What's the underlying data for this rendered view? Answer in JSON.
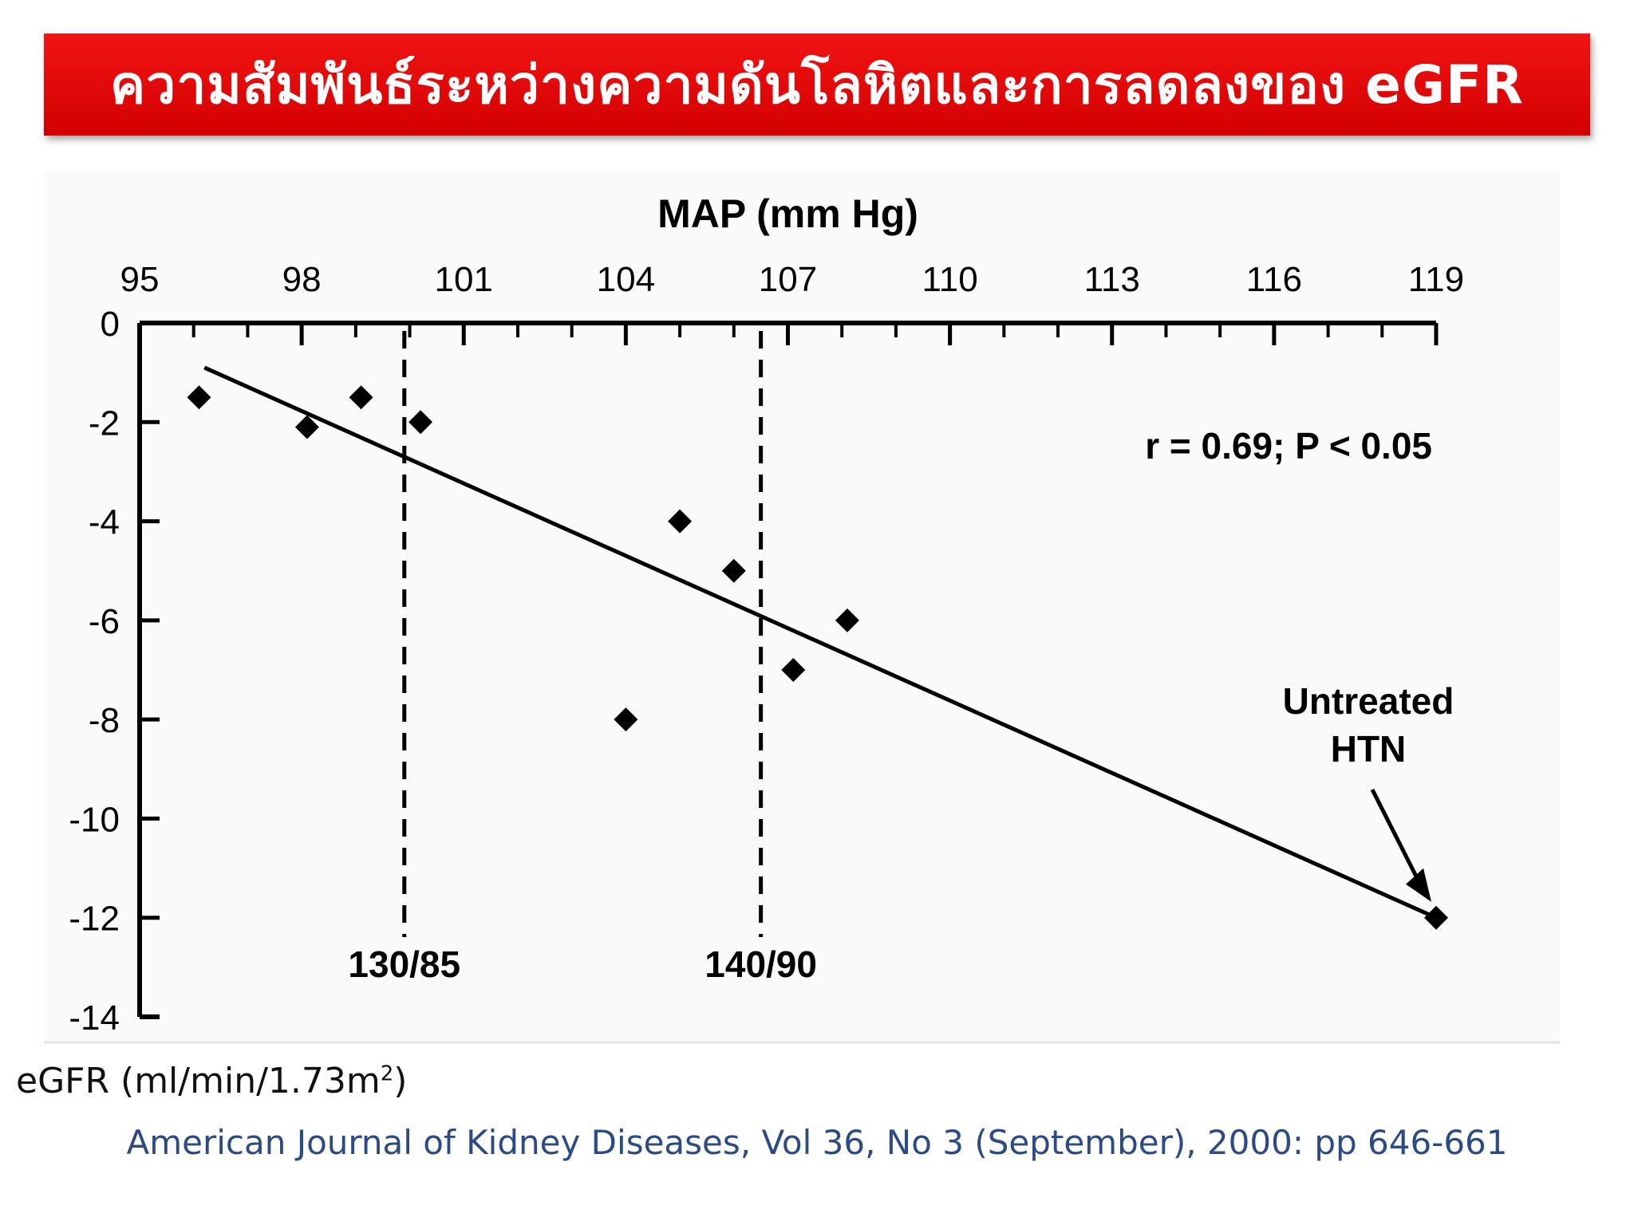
{
  "title": {
    "thai": "ความสัมพันธ์ระหว่างความดันโลหิตและการลดลงของ",
    "suffix": "eGFR"
  },
  "chart_data": {
    "type": "scatter",
    "xlabel": "MAP (mm Hg)",
    "xlim": [
      95,
      119
    ],
    "xticks": [
      95,
      98,
      101,
      104,
      107,
      110,
      113,
      116,
      119
    ],
    "ylim": [
      -14,
      0
    ],
    "yticks": [
      0,
      -2,
      -4,
      -6,
      -8,
      -10,
      -12,
      -14
    ],
    "series": [
      {
        "points": [
          {
            "x": 96.1,
            "y": -1.5
          },
          {
            "x": 98.1,
            "y": -2.1
          },
          {
            "x": 99.1,
            "y": -1.5
          },
          {
            "x": 100.2,
            "y": -2.0
          },
          {
            "x": 104.0,
            "y": -8.0
          },
          {
            "x": 105.0,
            "y": -4.0
          },
          {
            "x": 106.0,
            "y": -5.0
          },
          {
            "x": 107.1,
            "y": -7.0
          },
          {
            "x": 108.1,
            "y": -6.0
          },
          {
            "x": 119.0,
            "y": -12.0
          }
        ]
      }
    ],
    "regression_line": {
      "x": [
        96.2,
        119.0
      ],
      "y": [
        -0.9,
        -12.0
      ]
    },
    "reference_lines": [
      {
        "x": 99.9,
        "label": "130/85"
      },
      {
        "x": 106.5,
        "label": "140/90"
      }
    ],
    "annotations": {
      "stat": "r = 0.69; P < 0.05",
      "callout_lines": [
        "Untreated",
        "HTN"
      ]
    },
    "grid": false
  },
  "y_axis_unit": {
    "text": "eGFR (ml/min/1.73m",
    "superscript": "2",
    "close": ")"
  },
  "citation": "American Journal of Kidney Diseases, Vol 36, No 3 (September), 2000: pp 646-661",
  "colors": {
    "banner": "#e00000",
    "banner_text": "#ffffff",
    "citation": "#2c4a85",
    "ink": "#000000"
  }
}
